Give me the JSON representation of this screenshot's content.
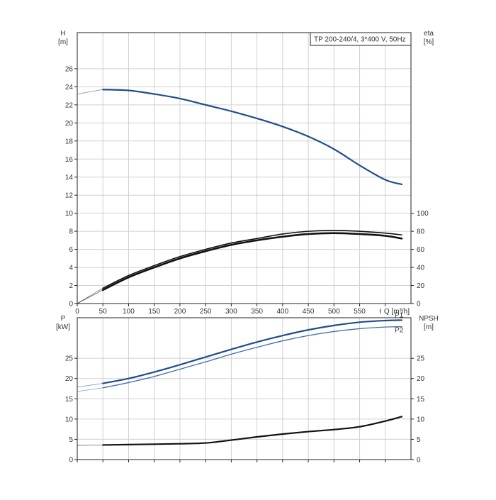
{
  "chart_data": [
    {
      "type": "line",
      "title": "TP 200-240/4, 3*400 V, 50Hz",
      "xlabel": "Q [m³/h]",
      "xlim": [
        0,
        650
      ],
      "x_ticks": [
        0,
        50,
        100,
        150,
        200,
        250,
        300,
        350,
        400,
        450,
        500,
        550,
        600
      ],
      "x_tick_labels": [
        "0",
        "50",
        "100",
        "150",
        "200",
        "250",
        "300",
        "350",
        "400",
        "450",
        "500",
        "550",
        "600"
      ],
      "left_axis": {
        "label_top": "H",
        "label_unit": "[m]",
        "ylim": [
          0,
          30
        ],
        "ticks": [
          0,
          2,
          4,
          6,
          8,
          10,
          12,
          14,
          16,
          18,
          20,
          22,
          24,
          26
        ]
      },
      "right_axis": {
        "label_top": "eta",
        "label_unit": "[%]",
        "ylim": [
          0,
          300
        ],
        "ticks": [
          0,
          20,
          40,
          60,
          80,
          100
        ]
      },
      "grid": true,
      "series": [
        {
          "axis": "left",
          "color": "#1f4e8c",
          "width": 2.2,
          "x": [
            0,
            50,
            100,
            150,
            200,
            250,
            300,
            350,
            400,
            450,
            500,
            550,
            600,
            632
          ],
          "y": [
            23.2,
            23.7,
            23.6,
            23.2,
            22.7,
            22.0,
            21.3,
            20.5,
            19.6,
            18.5,
            17.1,
            15.3,
            13.7,
            13.2
          ],
          "faint_until": 50
        },
        {
          "axis": "right",
          "color": "#111111",
          "width": 1.6,
          "x": [
            0,
            50,
            100,
            150,
            200,
            250,
            300,
            350,
            400,
            450,
            500,
            550,
            600,
            632
          ],
          "y": [
            0,
            17,
            31,
            42,
            52,
            60,
            67,
            72,
            77,
            80,
            81,
            80,
            78,
            76
          ],
          "faint_until": 50
        },
        {
          "axis": "right",
          "color": "#111111",
          "width": 2.6,
          "x": [
            0,
            50,
            100,
            150,
            200,
            250,
            300,
            350,
            400,
            450,
            500,
            550,
            600,
            632
          ],
          "y": [
            0,
            15,
            29,
            40,
            50,
            58,
            65,
            70,
            74,
            77,
            78,
            77,
            75,
            72
          ],
          "faint_until": 50
        }
      ]
    },
    {
      "type": "line",
      "xlim": [
        0,
        650
      ],
      "x_ticks": [
        0,
        50,
        100,
        150,
        200,
        250,
        300,
        350,
        400,
        450,
        500,
        550,
        600
      ],
      "left_axis": {
        "label_top": "P",
        "label_unit": "[kW]",
        "ylim": [
          0,
          35
        ],
        "ticks": [
          0,
          5,
          10,
          15,
          20,
          25
        ]
      },
      "right_axis": {
        "label_top": "NPSH",
        "label_unit": "[m]",
        "ylim": [
          0,
          35
        ],
        "ticks": [
          0,
          5,
          10,
          15,
          20,
          25
        ]
      },
      "grid": true,
      "series": [
        {
          "name": "P1",
          "axis": "left",
          "color": "#1f4e8c",
          "width": 2.2,
          "x": [
            0,
            50,
            100,
            150,
            200,
            250,
            300,
            350,
            400,
            450,
            500,
            550,
            600,
            632
          ],
          "y": [
            17.9,
            18.8,
            20.0,
            21.6,
            23.4,
            25.3,
            27.2,
            29.0,
            30.6,
            32.0,
            33.1,
            33.9,
            34.3,
            34.4
          ],
          "faint_until": 50
        },
        {
          "name": "P2",
          "axis": "left",
          "color": "#3f6fad",
          "width": 1.3,
          "x": [
            0,
            50,
            100,
            150,
            200,
            250,
            300,
            350,
            400,
            450,
            500,
            550,
            600,
            632
          ],
          "y": [
            16.8,
            17.7,
            19.0,
            20.5,
            22.3,
            24.1,
            26.0,
            27.7,
            29.3,
            30.6,
            31.6,
            32.3,
            32.7,
            32.8
          ],
          "faint_until": 50
        },
        {
          "axis": "right",
          "color": "#111111",
          "width": 2.2,
          "x": [
            0,
            50,
            100,
            150,
            200,
            250,
            300,
            350,
            400,
            450,
            500,
            550,
            600,
            632
          ],
          "y": [
            3.5,
            3.6,
            3.7,
            3.8,
            3.9,
            4.1,
            4.8,
            5.6,
            6.3,
            6.9,
            7.4,
            8.1,
            9.5,
            10.6
          ],
          "faint_until": 50
        }
      ]
    }
  ]
}
